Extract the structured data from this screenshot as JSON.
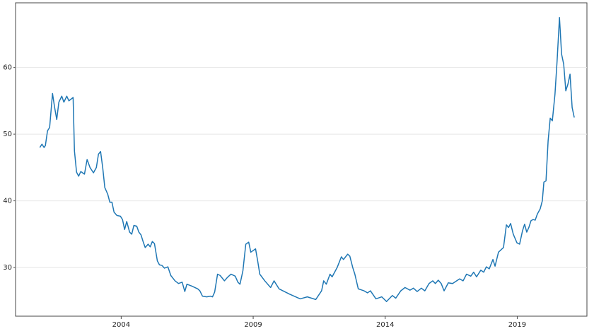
{
  "chart_data": {
    "type": "line",
    "color": "#1f77b4",
    "grid": true,
    "xlim": [
      2000.0,
      2021.64
    ],
    "xticks": [
      2004,
      2009,
      2014,
      2019
    ],
    "ylim": [
      22.7,
      69.7
    ],
    "yticks": [
      30,
      40,
      50,
      60
    ],
    "x": [
      2000.92,
      2001.0,
      2001.08,
      2001.13,
      2001.21,
      2001.29,
      2001.4,
      2001.48,
      2001.56,
      2001.64,
      2001.75,
      2001.83,
      2001.94,
      2002.02,
      2002.18,
      2002.23,
      2002.31,
      2002.39,
      2002.47,
      2002.61,
      2002.71,
      2002.82,
      2002.95,
      2003.06,
      2003.14,
      2003.22,
      2003.3,
      2003.38,
      2003.49,
      2003.57,
      2003.65,
      2003.73,
      2003.84,
      2003.97,
      2004.05,
      2004.13,
      2004.21,
      2004.32,
      2004.4,
      2004.48,
      2004.59,
      2004.67,
      2004.75,
      2004.83,
      2004.91,
      2005.02,
      2005.1,
      2005.18,
      2005.26,
      2005.37,
      2005.45,
      2005.55,
      2005.64,
      2005.77,
      2005.88,
      2006.04,
      2006.17,
      2006.31,
      2006.41,
      2006.49,
      2006.68,
      2006.9,
      2006.98,
      2007.08,
      2007.24,
      2007.38,
      2007.46,
      2007.54,
      2007.65,
      2007.75,
      2007.91,
      2008.02,
      2008.16,
      2008.32,
      2008.42,
      2008.5,
      2008.61,
      2008.72,
      2008.83,
      2008.91,
      2009.09,
      2009.17,
      2009.25,
      2009.44,
      2009.66,
      2009.79,
      2009.98,
      2010.38,
      2010.78,
      2011.05,
      2011.37,
      2011.59,
      2011.67,
      2011.77,
      2011.91,
      2011.99,
      2012.18,
      2012.34,
      2012.42,
      2012.58,
      2012.66,
      2012.77,
      2012.85,
      2012.98,
      2013.2,
      2013.33,
      2013.44,
      2013.65,
      2013.87,
      2014.05,
      2014.27,
      2014.4,
      2014.59,
      2014.75,
      2014.94,
      2015.07,
      2015.21,
      2015.37,
      2015.5,
      2015.66,
      2015.8,
      2015.9,
      2016.01,
      2016.12,
      2016.23,
      2016.39,
      2016.55,
      2016.82,
      2016.95,
      2017.08,
      2017.24,
      2017.35,
      2017.46,
      2017.62,
      2017.73,
      2017.83,
      2017.94,
      2018.08,
      2018.16,
      2018.29,
      2018.48,
      2018.59,
      2018.67,
      2018.75,
      2018.85,
      2018.99,
      2019.09,
      2019.2,
      2019.28,
      2019.36,
      2019.44,
      2019.52,
      2019.6,
      2019.68,
      2019.76,
      2019.87,
      2019.95,
      2020.01,
      2020.09,
      2020.17,
      2020.25,
      2020.33,
      2020.43,
      2020.51,
      2020.6,
      2020.68,
      2020.76,
      2020.84,
      2020.92,
      2021.0,
      2021.08,
      2021.16
    ],
    "values": [
      48.0,
      48.5,
      48.0,
      48.3,
      50.5,
      51.0,
      56.1,
      54.0,
      52.2,
      54.8,
      55.7,
      54.8,
      55.7,
      55.0,
      55.5,
      47.5,
      44.3,
      43.7,
      44.4,
      44.0,
      46.2,
      45.0,
      44.2,
      45.0,
      47.0,
      47.4,
      45.0,
      42.0,
      41.0,
      39.8,
      39.8,
      38.3,
      37.8,
      37.7,
      37.2,
      35.7,
      36.9,
      35.3,
      35.0,
      36.3,
      36.2,
      35.3,
      34.9,
      33.9,
      33.0,
      33.5,
      33.1,
      33.9,
      33.6,
      31.0,
      30.4,
      30.3,
      29.9,
      30.1,
      28.8,
      28.0,
      27.6,
      27.8,
      26.4,
      27.5,
      27.2,
      26.8,
      26.5,
      25.7,
      25.6,
      25.7,
      25.6,
      26.3,
      29.0,
      28.8,
      28.0,
      28.5,
      29.0,
      28.7,
      27.8,
      27.5,
      29.5,
      33.5,
      33.8,
      32.3,
      32.8,
      31.0,
      29.0,
      28.0,
      27.0,
      28.0,
      26.8,
      26.0,
      25.3,
      25.6,
      25.2,
      26.5,
      28.0,
      27.5,
      29.0,
      28.6,
      30.0,
      31.6,
      31.2,
      32.0,
      31.7,
      30.0,
      29.0,
      26.8,
      26.5,
      26.2,
      26.5,
      25.3,
      25.6,
      24.9,
      25.8,
      25.4,
      26.5,
      27.0,
      26.6,
      26.9,
      26.4,
      26.9,
      26.5,
      27.6,
      28.0,
      27.6,
      28.1,
      27.6,
      26.5,
      27.7,
      27.6,
      28.3,
      28.0,
      29.0,
      28.7,
      29.3,
      28.6,
      29.6,
      29.3,
      30.1,
      29.8,
      31.2,
      30.2,
      32.3,
      33.0,
      36.4,
      36.0,
      36.6,
      35.0,
      33.7,
      33.5,
      35.5,
      36.5,
      35.3,
      36.0,
      37.0,
      37.2,
      37.1,
      38.0,
      38.8,
      40.0,
      42.8,
      43.0,
      49.0,
      52.4,
      52.0,
      56.0,
      61.0,
      67.5,
      62.0,
      60.5,
      56.5,
      57.5,
      59.0,
      54.0,
      52.5
    ]
  }
}
